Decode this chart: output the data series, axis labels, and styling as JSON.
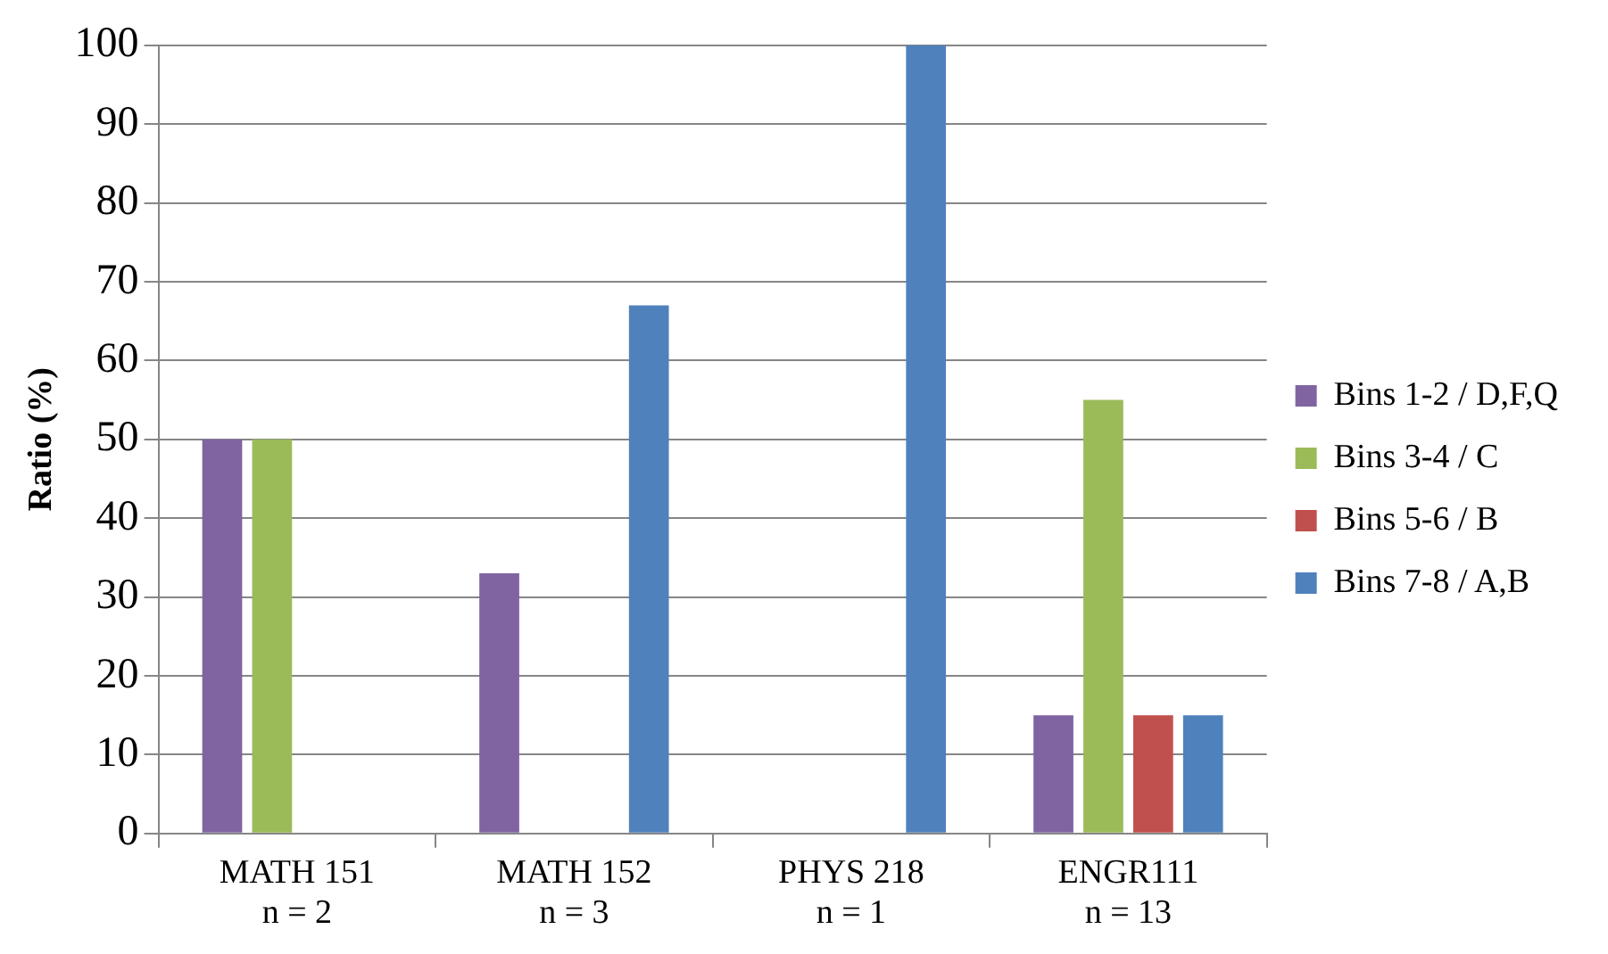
{
  "chart_data": {
    "type": "bar",
    "ylabel": "Ratio (%)",
    "categories": [
      "MATH 151\nn = 2",
      "MATH 152\nn = 3",
      "PHYS 218\nn = 1",
      "ENGR111\nn = 13"
    ],
    "series": [
      {
        "name": "Bins 1-2 / D,F,Q",
        "color": "#8064a2",
        "values": [
          50,
          33,
          0,
          15
        ]
      },
      {
        "name": "Bins 3-4 / C",
        "color": "#9bbb59",
        "values": [
          50,
          0,
          0,
          55
        ]
      },
      {
        "name": "Bins 5-6 / B",
        "color": "#c0504d",
        "values": [
          0,
          0,
          0,
          15
        ]
      },
      {
        "name": "Bins 7-8 / A,B",
        "color": "#4f81bd",
        "values": [
          0,
          67,
          100,
          15
        ]
      }
    ],
    "ylim": [
      0,
      100
    ],
    "yticks": [
      0,
      10,
      20,
      30,
      40,
      50,
      60,
      70,
      80,
      90,
      100
    ],
    "grid": "y",
    "legend": "right"
  }
}
